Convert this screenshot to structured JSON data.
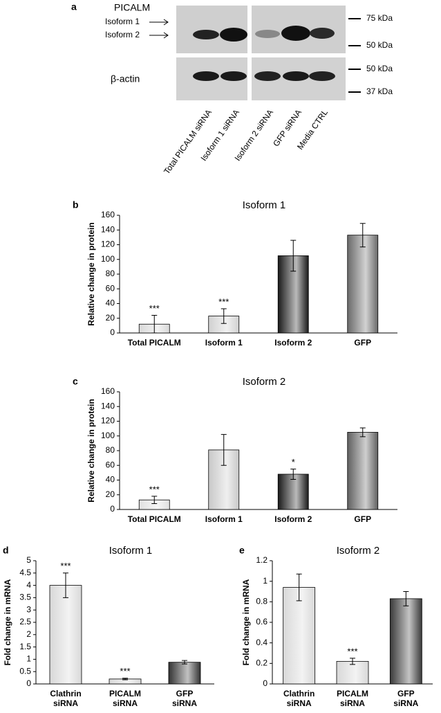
{
  "blot": {
    "panel": "a",
    "protein": "PICALM",
    "isoform_labels": [
      "Isoform 1",
      "Isoform 2"
    ],
    "loading_control": "β-actin",
    "markers": [
      "75 kDa",
      "50 kDa",
      "50 kDa",
      "37 kDa"
    ],
    "lanes": [
      "Total PICALM siRNA",
      "Isoform 1 siRNA",
      "Isoform 2 siRNA",
      "GFP siRNA",
      "Media CTRL"
    ]
  },
  "chart_data": [
    {
      "type": "bar",
      "panel": "b",
      "title": "Isoform 1",
      "y_label": "Relative change in protein",
      "categories": [
        "Total PICALM",
        "Isoform 1",
        "Isoform 2",
        "GFP"
      ],
      "values": [
        12,
        23,
        105,
        133
      ],
      "errors": [
        12,
        10,
        21,
        16
      ],
      "significance": [
        "***",
        "***",
        null,
        null
      ],
      "colors": [
        "#d8d8d8",
        "#d0d0d0",
        "#1a1a1a",
        "#6a6a6a"
      ],
      "ylim": [
        0,
        160
      ],
      "yticks": [
        0,
        20,
        40,
        60,
        80,
        100,
        120,
        140,
        160
      ]
    },
    {
      "type": "bar",
      "panel": "c",
      "title": "Isoform 2",
      "y_label": "Relative change in protein",
      "categories": [
        "Total PICALM",
        "Isoform 1",
        "Isoform 2",
        "GFP"
      ],
      "values": [
        13,
        81,
        48,
        105
      ],
      "errors": [
        5,
        21,
        7,
        6
      ],
      "significance": [
        "***",
        null,
        "*",
        null
      ],
      "colors": [
        "#e0e0e0",
        "#c8c8c8",
        "#1a1a1a",
        "#606060"
      ],
      "ylim": [
        0,
        160
      ],
      "yticks": [
        0,
        20,
        40,
        60,
        80,
        100,
        120,
        140,
        160
      ]
    },
    {
      "type": "bar",
      "panel": "d",
      "title": "Isoform 1",
      "y_label": "Fold change in mRNA",
      "categories": [
        "Clathrin siRNA",
        "PICALM siRNA",
        "GFP siRNA"
      ],
      "values": [
        4.0,
        0.2,
        0.88
      ],
      "errors": [
        0.5,
        0.03,
        0.07
      ],
      "significance": [
        "***",
        "***",
        null
      ],
      "colors": [
        "#d8d8d8",
        "#d8d8d8",
        "#333333"
      ],
      "ylim": [
        0,
        5
      ],
      "yticks": [
        0,
        0.5,
        1,
        1.5,
        2,
        2.5,
        3,
        3.5,
        4,
        4.5,
        5
      ]
    },
    {
      "type": "bar",
      "panel": "e",
      "title": "Isoform 2",
      "y_label": "Fold change in mRNA",
      "categories": [
        "Clathrin siRNA",
        "PICALM siRNA",
        "GFP siRNA"
      ],
      "values": [
        0.94,
        0.22,
        0.83
      ],
      "errors": [
        0.13,
        0.03,
        0.07
      ],
      "significance": [
        null,
        "***",
        null
      ],
      "colors": [
        "#d8d8d8",
        "#d8d8d8",
        "#3a3a3a"
      ],
      "ylim": [
        0,
        1.2
      ],
      "yticks": [
        0,
        0.2,
        0.4,
        0.6,
        0.8,
        1,
        1.2
      ]
    }
  ]
}
